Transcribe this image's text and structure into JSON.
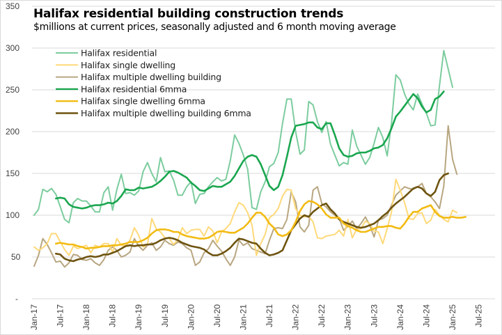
{
  "chart_data": {
    "type": "line",
    "title": "Halifax residential building construction trends",
    "subtitle": "$millions at current prices, seasonally adjusted and 6 month moving average",
    "xlabel": "",
    "ylabel": "",
    "ylim": [
      0,
      350
    ],
    "yticks": [
      0,
      50,
      100,
      150,
      200,
      250,
      300,
      350
    ],
    "ytick_labels": [
      "-",
      "50",
      "100",
      "150",
      "200",
      "250",
      "300",
      "350"
    ],
    "xtick_labels": [
      "Jan-17",
      "Jul-17",
      "Jan-18",
      "Jul-18",
      "Jan-19",
      "Jul-19",
      "Jan-20",
      "Jul-20",
      "Jan-21",
      "Jul-21",
      "Jan-22",
      "Jul-22",
      "Jan-23",
      "Jul-23",
      "Jan-24",
      "Jul-24",
      "Jan-25",
      "Jul-25"
    ],
    "x_start": "Jan-17",
    "x_end_axis": "Jul-25",
    "grid": "horizontal",
    "legend_position": "top-left",
    "series": [
      {
        "name": "Halifax residential",
        "color": "#7ccc9e",
        "width": "thin",
        "start_month": 0,
        "values": [
          100,
          107,
          131,
          128,
          132,
          125,
          110,
          95,
          91,
          115,
          120,
          117,
          117,
          111,
          104,
          104,
          127,
          134,
          106,
          131,
          149,
          126,
          127,
          124,
          129,
          152,
          163,
          150,
          140,
          169,
          152,
          153,
          142,
          124,
          124,
          134,
          140,
          114,
          125,
          126,
          134,
          140,
          145,
          141,
          143,
          165,
          196,
          186,
          172,
          155,
          109,
          107,
          128,
          140,
          158,
          162,
          175,
          210,
          239,
          239,
          200,
          173,
          178,
          236,
          232,
          212,
          199,
          212,
          185,
          172,
          159,
          163,
          161,
          202,
          183,
          172,
          161,
          169,
          186,
          205,
          193,
          171,
          210,
          268,
          262,
          245,
          233,
          226,
          245,
          233,
          222,
          207,
          208,
          255,
          297,
          275,
          253
        ]
      },
      {
        "name": "Halifax single dwelling",
        "color": "#ffd97a",
        "width": "thin",
        "start_month": 0,
        "values": [
          62,
          58,
          61,
          66,
          78,
          78,
          68,
          59,
          52,
          63,
          60,
          62,
          64,
          55,
          64,
          62,
          66,
          66,
          56,
          72,
          64,
          63,
          70,
          85,
          76,
          62,
          65,
          96,
          84,
          80,
          73,
          72,
          65,
          71,
          85,
          78,
          82,
          83,
          83,
          75,
          86,
          81,
          67,
          80,
          84,
          90,
          104,
          115,
          112,
          103,
          88,
          52,
          66,
          77,
          97,
          101,
          108,
          123,
          131,
          130,
          108,
          100,
          98,
          99,
          92,
          73,
          72,
          75,
          76,
          77,
          82,
          75,
          95,
          73,
          83,
          84,
          93,
          90,
          81,
          80,
          66,
          84,
          104,
          143,
          130,
          115,
          96,
          95,
          102,
          103,
          90,
          94,
          107,
          100,
          95,
          92,
          106,
          103
        ]
      },
      {
        "name": "Halifax multiple dwelling building",
        "color": "#b8a680",
        "width": "thin",
        "start_month": 0,
        "values": [
          39,
          52,
          72,
          65,
          55,
          44,
          45,
          38,
          43,
          53,
          52,
          47,
          46,
          48,
          43,
          40,
          47,
          58,
          62,
          58,
          50,
          52,
          56,
          72,
          63,
          58,
          64,
          67,
          58,
          62,
          70,
          66,
          64,
          68,
          66,
          61,
          58,
          40,
          44,
          55,
          60,
          70,
          63,
          57,
          48,
          40,
          50,
          70,
          64,
          67,
          60,
          58,
          56,
          54,
          70,
          84,
          85,
          84,
          95,
          128,
          116,
          86,
          80,
          88,
          130,
          134,
          114,
          110,
          104,
          100,
          96,
          82,
          87,
          93,
          84,
          90,
          98,
          88,
          74,
          94,
          96,
          100,
          112,
          124,
          129,
          134,
          132,
          131,
          134,
          138,
          126,
          122,
          116,
          108,
          135,
          207,
          167,
          149
        ]
      },
      {
        "name": "Halifax residential 6mma",
        "color": "#1aa64f",
        "width": "thick",
        "start_month": 5,
        "values": [
          120,
          121,
          120,
          113,
          110,
          109,
          108,
          109,
          111,
          112,
          112,
          113,
          115,
          114,
          117,
          123,
          131,
          130,
          130,
          133,
          132,
          133,
          134,
          137,
          141,
          146,
          152,
          153,
          151,
          148,
          145,
          139,
          135,
          130,
          129,
          132,
          135,
          134,
          134,
          137,
          140,
          147,
          156,
          165,
          170,
          172,
          170,
          161,
          148,
          135,
          130,
          134,
          148,
          170,
          193,
          207,
          208,
          209,
          211,
          211,
          205,
          203,
          210,
          210,
          196,
          180,
          172,
          170,
          171,
          174,
          175,
          175,
          177,
          180,
          181,
          184,
          192,
          204,
          218,
          224,
          231,
          238,
          245,
          240,
          230,
          223,
          226,
          239,
          242,
          248
        ]
      },
      {
        "name": "Halifax single dwelling 6mma",
        "color": "#f2bb13",
        "width": "thick",
        "start_month": 5,
        "values": [
          66,
          67,
          66,
          65,
          65,
          63,
          62,
          60,
          61,
          61,
          62,
          63,
          63,
          64,
          64,
          65,
          66,
          68,
          68,
          68,
          70,
          73,
          78,
          82,
          83,
          83,
          82,
          80,
          80,
          77,
          75,
          74,
          73,
          72,
          72,
          73,
          76,
          80,
          81,
          80,
          79,
          79,
          82,
          85,
          90,
          97,
          103,
          103,
          98,
          90,
          85,
          77,
          75,
          77,
          82,
          92,
          105,
          113,
          117,
          116,
          113,
          108,
          101,
          97,
          97,
          97,
          90,
          87,
          85,
          82,
          80,
          80,
          82,
          84,
          86,
          86,
          87,
          87,
          85,
          84,
          90,
          98,
          104,
          104,
          108,
          110,
          112,
          104,
          99,
          97,
          97,
          98,
          97,
          97,
          98
        ]
      },
      {
        "name": "Halifax multiple dwelling building 6mma",
        "color": "#6e5410",
        "width": "thick",
        "start_month": 5,
        "values": [
          54,
          53,
          48,
          46,
          45,
          47,
          48,
          50,
          51,
          50,
          51,
          53,
          53,
          55,
          57,
          60,
          63,
          64,
          63,
          64,
          64,
          65,
          65,
          67,
          70,
          72,
          73,
          72,
          70,
          67,
          65,
          63,
          62,
          61,
          59,
          55,
          52,
          52,
          54,
          57,
          61,
          67,
          72,
          71,
          69,
          67,
          66,
          60,
          55,
          52,
          53,
          55,
          58,
          70,
          82,
          89,
          96,
          100,
          98,
          104,
          108,
          112,
          114,
          107,
          102,
          95,
          92,
          90,
          88,
          86,
          85,
          86,
          88,
          90,
          94,
          99,
          103,
          109,
          114,
          118,
          122,
          127,
          132,
          134,
          132,
          126,
          123,
          128,
          142,
          148,
          150
        ]
      }
    ]
  }
}
